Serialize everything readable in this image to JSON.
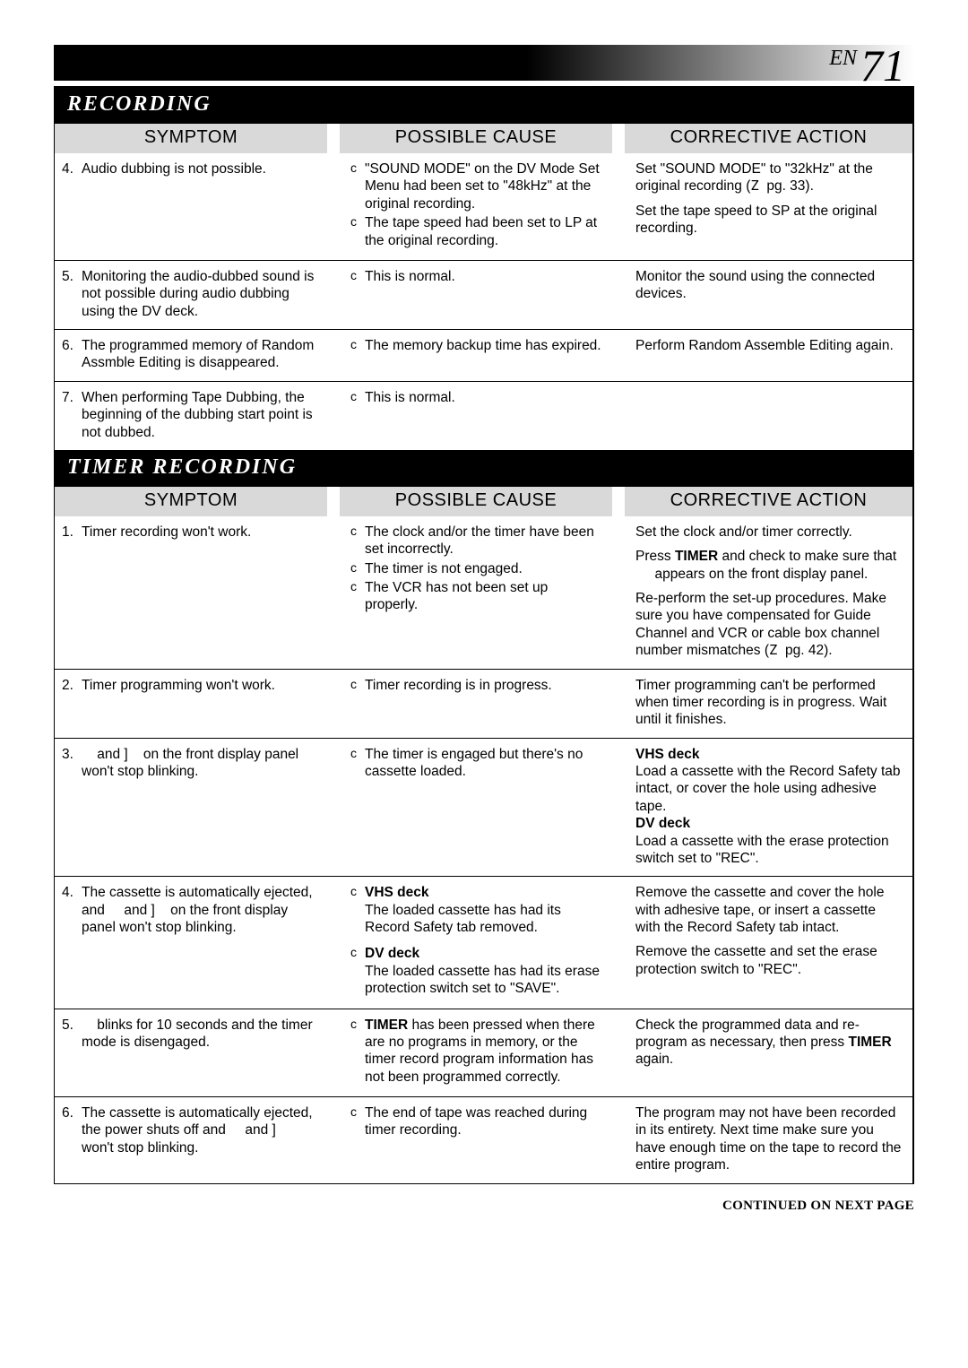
{
  "page_label_prefix": "EN",
  "page_number": "71",
  "continued_text": "CONTINUED ON NEXT PAGE",
  "headers": {
    "symptom": "SYMPTOM",
    "cause": "POSSIBLE CAUSE",
    "action": "CORRECTIVE ACTION"
  },
  "sections": [
    {
      "title": "RECORDING",
      "rows": [
        {
          "num": "4.",
          "symptom": "Audio dubbing is not possible.",
          "causes": [
            "\"SOUND MODE\" on the DV Mode Set Menu had been set to \"48kHz\" at the original recording.",
            "The tape speed had been set to LP at the original recording."
          ],
          "actions_html": "<div class='action-para'>Set \"SOUND MODE\" to \"32kHz\" at the original recording (<span class='sym'>Z</span>&nbsp; pg. 33).</div><div class='action-para'>Set the tape speed to SP at the original recording.</div>"
        },
        {
          "num": "5.",
          "symptom": "Monitoring the audio-dubbed sound is not possible during audio dubbing using the DV deck.",
          "causes": [
            "This is normal."
          ],
          "actions_html": "Monitor the sound using the connected devices."
        },
        {
          "num": "6.",
          "symptom": "The programmed memory of Random Assmble Editing is disappeared.",
          "causes": [
            "The memory backup time has expired."
          ],
          "actions_html": "Perform Random Assemble Editing again."
        },
        {
          "num": "7.",
          "symptom": "When performing Tape Dubbing, the beginning of the dubbing start point is not dubbed.",
          "causes": [
            "This is normal."
          ],
          "actions_html": ""
        }
      ]
    },
    {
      "title": "TIMER RECORDING",
      "rows": [
        {
          "num": "1.",
          "symptom": "Timer recording won't work.",
          "causes": [
            "The clock and/or the timer have been set incorrectly.",
            "The timer is not engaged.",
            "The VCR has not been set up properly."
          ],
          "actions_html": "<div class='action-para'>Set the clock and/or timer correctly.</div><div class='action-para'>Press <b>TIMER</b> and check to make sure that &nbsp;&nbsp;&nbsp;&nbsp; appears on the front display panel.</div><div class='action-para'>Re-perform the set-up procedures. Make sure you have compensated for Guide Channel and VCR or cable box channel number mismatches (<span class='sym'>Z</span>&nbsp; pg. 42).</div>"
        },
        {
          "num": "2.",
          "symptom": "Timer programming won't work.",
          "causes": [
            "Timer recording is in progress."
          ],
          "actions_html": "Timer programming can't be performed when timer recording is in progress. Wait until it finishes."
        },
        {
          "num": "3.",
          "symptom": "&nbsp;&nbsp;&nbsp; and ]&nbsp;&nbsp;&nbsp; on the front display panel won't stop blinking.",
          "causes": [
            "The timer is engaged but there's no cassette loaded."
          ],
          "actions_html": "<b>VHS deck</b><br>Load a cassette with the Record Safety tab intact, or cover the hole using adhesive tape.<br><b>DV deck</b><br>Load a cassette with the erase protection switch set to \"REC\"."
        },
        {
          "num": "4.",
          "symptom": "The cassette is automatically ejected, and &nbsp;&nbsp;&nbsp; and ]&nbsp;&nbsp;&nbsp; on the front display panel won't stop blinking.",
          "causes_html": "<div class='bullet-item'><span class='b'>c</span><span class='t'><b>VHS deck</b><br>The loaded cassette has had its Record Safety tab removed.</span></div><div class='bullet-item' style='margin-top:10px'><span class='b'>c</span><span class='t'><b>DV deck</b><br>The loaded cassette has had its erase protection switch set to \"SAVE\".</span></div>",
          "actions_html": "<div class='action-para'>Remove the cassette and cover the hole with adhesive tape, or insert a cassette with the Record Safety tab intact.</div><div class='action-para'>Remove the cassette and set the erase protection switch to \"REC\".</div>"
        },
        {
          "num": "5.",
          "symptom": "&nbsp;&nbsp;&nbsp; blinks for 10 seconds and the timer mode is disengaged.",
          "causes_html": "<div class='bullet-item'><span class='b'>c</span><span class='t'><b>TIMER</b> has been pressed when there are no programs in memory, or the timer record program information has not been programmed correctly.</span></div>",
          "actions_html": "Check the programmed data and re-program as necessary, then press <b>TIMER</b> again."
        },
        {
          "num": "6.",
          "symptom": "The cassette is automatically ejected, the power shuts off and &nbsp;&nbsp;&nbsp; and ]&nbsp;&nbsp;&nbsp; won't stop blinking.",
          "causes": [
            "The end of tape was reached during timer recording."
          ],
          "actions_html": "The program may not have been recorded in its entirety. Next time make sure you have enough time on the tape to record the entire program."
        }
      ]
    }
  ]
}
